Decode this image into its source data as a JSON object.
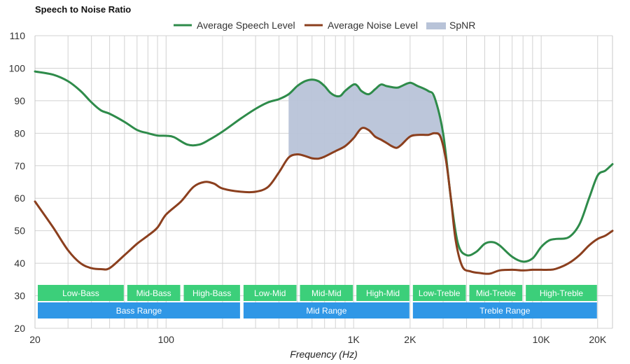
{
  "chart_data": {
    "type": "line",
    "title": "Speech to Noise Ratio",
    "xlabel": "Frequency (Hz)",
    "ylabel": "",
    "x_scale": "log",
    "xlim": [
      20,
      24000
    ],
    "ylim": [
      20,
      110
    ],
    "y_ticks": [
      20,
      30,
      40,
      50,
      60,
      70,
      80,
      90,
      100,
      110
    ],
    "x_ticks": [
      {
        "value": 20,
        "label": "20"
      },
      {
        "value": 100,
        "label": "100"
      },
      {
        "value": 1000,
        "label": "1K"
      },
      {
        "value": 2000,
        "label": "2K"
      },
      {
        "value": 10000,
        "label": "10K"
      },
      {
        "value": 20000,
        "label": "20K"
      }
    ],
    "grid": true,
    "legend_position": "top-center",
    "series": [
      {
        "name": "Average Speech Level",
        "color": "#2e8b4a",
        "points": [
          [
            20,
            99
          ],
          [
            25,
            98
          ],
          [
            30,
            96
          ],
          [
            35,
            93
          ],
          [
            40,
            89.5
          ],
          [
            45,
            87
          ],
          [
            50,
            86
          ],
          [
            60,
            83.5
          ],
          [
            70,
            81
          ],
          [
            80,
            80
          ],
          [
            90,
            79.3
          ],
          [
            100,
            79.2
          ],
          [
            110,
            78.8
          ],
          [
            130,
            76.5
          ],
          [
            150,
            76.5
          ],
          [
            170,
            78
          ],
          [
            200,
            80.5
          ],
          [
            250,
            84.5
          ],
          [
            300,
            87.5
          ],
          [
            350,
            89.5
          ],
          [
            400,
            90.5
          ],
          [
            450,
            92
          ],
          [
            500,
            94.5
          ],
          [
            550,
            96
          ],
          [
            600,
            96.5
          ],
          [
            650,
            96
          ],
          [
            700,
            94.5
          ],
          [
            750,
            92.5
          ],
          [
            800,
            91.5
          ],
          [
            850,
            91.5
          ],
          [
            900,
            93
          ],
          [
            1000,
            95
          ],
          [
            1050,
            94.5
          ],
          [
            1100,
            93
          ],
          [
            1200,
            92
          ],
          [
            1300,
            93.5
          ],
          [
            1400,
            95
          ],
          [
            1500,
            94.5
          ],
          [
            1700,
            94
          ],
          [
            1800,
            94.5
          ],
          [
            2000,
            95.5
          ],
          [
            2200,
            94.5
          ],
          [
            2500,
            93
          ],
          [
            2700,
            91
          ],
          [
            3000,
            80
          ],
          [
            3300,
            60
          ],
          [
            3600,
            46
          ],
          [
            4000,
            42.5
          ],
          [
            4500,
            43.5
          ],
          [
            5000,
            46
          ],
          [
            5500,
            46.5
          ],
          [
            6000,
            45.5
          ],
          [
            7000,
            42
          ],
          [
            8000,
            40.5
          ],
          [
            9000,
            41.5
          ],
          [
            10000,
            45
          ],
          [
            11000,
            47
          ],
          [
            12000,
            47.5
          ],
          [
            14000,
            48
          ],
          [
            16000,
            52
          ],
          [
            18000,
            60
          ],
          [
            20000,
            67
          ],
          [
            22000,
            68.5
          ],
          [
            24000,
            70.5
          ]
        ]
      },
      {
        "name": "Average Noise Level",
        "color": "#8b3f1e",
        "points": [
          [
            20,
            59
          ],
          [
            25,
            51
          ],
          [
            30,
            44
          ],
          [
            35,
            40
          ],
          [
            40,
            38.5
          ],
          [
            45,
            38.2
          ],
          [
            50,
            38.5
          ],
          [
            60,
            42.5
          ],
          [
            70,
            46
          ],
          [
            80,
            48.5
          ],
          [
            90,
            51
          ],
          [
            100,
            55
          ],
          [
            120,
            59
          ],
          [
            140,
            63.5
          ],
          [
            160,
            65
          ],
          [
            180,
            64.5
          ],
          [
            200,
            63
          ],
          [
            250,
            62
          ],
          [
            300,
            62
          ],
          [
            350,
            63.5
          ],
          [
            400,
            68
          ],
          [
            450,
            72.5
          ],
          [
            500,
            73.5
          ],
          [
            550,
            73
          ],
          [
            600,
            72.3
          ],
          [
            650,
            72.2
          ],
          [
            700,
            72.8
          ],
          [
            800,
            74.5
          ],
          [
            900,
            76
          ],
          [
            1000,
            78.5
          ],
          [
            1100,
            81.5
          ],
          [
            1200,
            81
          ],
          [
            1300,
            79
          ],
          [
            1400,
            78
          ],
          [
            1500,
            77
          ],
          [
            1600,
            76
          ],
          [
            1700,
            75.5
          ],
          [
            1800,
            76.5
          ],
          [
            2000,
            79
          ],
          [
            2200,
            79.5
          ],
          [
            2500,
            79.5
          ],
          [
            2700,
            80
          ],
          [
            2900,
            79
          ],
          [
            3100,
            72
          ],
          [
            3300,
            60
          ],
          [
            3500,
            47
          ],
          [
            3800,
            39
          ],
          [
            4200,
            37.5
          ],
          [
            4700,
            37
          ],
          [
            5300,
            36.8
          ],
          [
            6000,
            37.8
          ],
          [
            7000,
            38
          ],
          [
            8000,
            37.8
          ],
          [
            9000,
            38
          ],
          [
            10000,
            38
          ],
          [
            11000,
            38
          ],
          [
            12000,
            38.3
          ],
          [
            14000,
            40
          ],
          [
            16000,
            42.5
          ],
          [
            18000,
            45.5
          ],
          [
            20000,
            47.5
          ],
          [
            22000,
            48.5
          ],
          [
            24000,
            50
          ]
        ]
      },
      {
        "name": "SpNR",
        "color": "#b8c3d8",
        "type": "area",
        "x_range": [
          450,
          3100
        ]
      }
    ],
    "bands": [
      {
        "label": "Low-Bass",
        "from": 20,
        "to": 60,
        "row": 1,
        "color": "#3ccf7a"
      },
      {
        "label": "Mid-Bass",
        "from": 60,
        "to": 120,
        "row": 1,
        "color": "#3ccf7a"
      },
      {
        "label": "High-Bass",
        "from": 120,
        "to": 250,
        "row": 1,
        "color": "#3ccf7a"
      },
      {
        "label": "Low-Mid",
        "from": 250,
        "to": 500,
        "row": 1,
        "color": "#3ccf7a"
      },
      {
        "label": "Mid-Mid",
        "from": 500,
        "to": 1000,
        "row": 1,
        "color": "#3ccf7a"
      },
      {
        "label": "High-Mid",
        "from": 1000,
        "to": 2000,
        "row": 1,
        "color": "#3ccf7a"
      },
      {
        "label": "Low-Treble",
        "from": 2000,
        "to": 4000,
        "row": 1,
        "color": "#3ccf7a"
      },
      {
        "label": "Mid-Treble",
        "from": 4000,
        "to": 8000,
        "row": 1,
        "color": "#3ccf7a"
      },
      {
        "label": "High-Treble",
        "from": 8000,
        "to": 20000,
        "row": 1,
        "color": "#3ccf7a"
      },
      {
        "label": "Bass Range",
        "from": 20,
        "to": 250,
        "row": 2,
        "color": "#2f97e6"
      },
      {
        "label": "Mid Range",
        "from": 250,
        "to": 2000,
        "row": 2,
        "color": "#2f97e6"
      },
      {
        "label": "Treble Range",
        "from": 2000,
        "to": 20000,
        "row": 2,
        "color": "#2f97e6"
      }
    ]
  }
}
